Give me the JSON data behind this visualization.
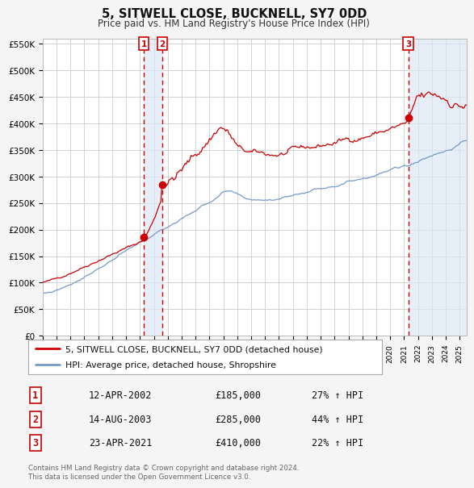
{
  "title": "5, SITWELL CLOSE, BUCKNELL, SY7 0DD",
  "subtitle": "Price paid vs. HM Land Registry's House Price Index (HPI)",
  "ylim": [
    0,
    560000
  ],
  "yticks": [
    0,
    50000,
    100000,
    150000,
    200000,
    250000,
    300000,
    350000,
    400000,
    450000,
    500000,
    550000
  ],
  "ytick_labels": [
    "£0",
    "£50K",
    "£100K",
    "£150K",
    "£200K",
    "£250K",
    "£300K",
    "£350K",
    "£400K",
    "£450K",
    "£500K",
    "£550K"
  ],
  "bg_color": "#f5f5f5",
  "plot_bg_color": "#ffffff",
  "grid_color": "#cccccc",
  "red_line_color": "#cc0000",
  "blue_line_color": "#7799cc",
  "transaction_dashed_color": "#cc0000",
  "transaction_shade_color": "#dce8f5",
  "sale1_date_num": 2002.28,
  "sale1_price": 185000,
  "sale2_date_num": 2003.62,
  "sale2_price": 285000,
  "sale3_date_num": 2021.31,
  "sale3_price": 410000,
  "legend_label_red": "5, SITWELL CLOSE, BUCKNELL, SY7 0DD (detached house)",
  "legend_label_blue": "HPI: Average price, detached house, Shropshire",
  "table_rows": [
    [
      "1",
      "12-APR-2002",
      "£185,000",
      "27% ↑ HPI"
    ],
    [
      "2",
      "14-AUG-2003",
      "£285,000",
      "44% ↑ HPI"
    ],
    [
      "3",
      "23-APR-2021",
      "£410,000",
      "22% ↑ HPI"
    ]
  ],
  "footer": "Contains HM Land Registry data © Crown copyright and database right 2024.\nThis data is licensed under the Open Government Licence v3.0.",
  "xstart": 1995.0,
  "xend": 2025.5
}
